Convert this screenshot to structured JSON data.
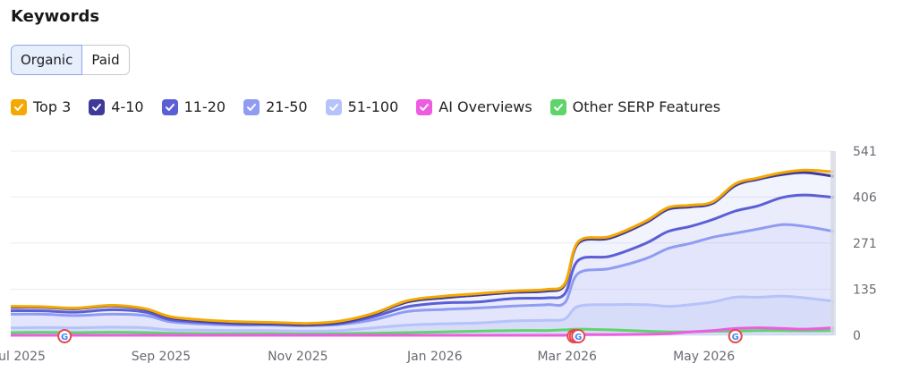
{
  "header": {
    "title": "Keywords"
  },
  "toggle": {
    "options": [
      "Organic",
      "Paid"
    ],
    "selected": "Organic"
  },
  "colors": {
    "top3": "#f5a800",
    "pos4_10": "#3f3a9a",
    "pos11_20": "#5b5fd6",
    "pos21_50": "#8f9cf2",
    "pos51_100": "#b6c3fa",
    "ai": "#ee5ce0",
    "serp": "#5fd46a",
    "grid": "#ececf0",
    "axis_text": "#6a6a73"
  },
  "legend": [
    {
      "label": "Top 3",
      "color": "#f5a800"
    },
    {
      "label": "4-10",
      "color": "#3f3a9a"
    },
    {
      "label": "11-20",
      "color": "#5b5fd6"
    },
    {
      "label": "21-50",
      "color": "#8f9cf2"
    },
    {
      "label": "51-100",
      "color": "#b6c3fa"
    },
    {
      "label": "AI Overviews",
      "color": "#ee5ce0"
    },
    {
      "label": "Other SERP Features",
      "color": "#5fd46a"
    }
  ],
  "chart_data": {
    "type": "area",
    "x_tick_labels": [
      "ul 2025",
      "Sep 2025",
      "Nov 2025",
      "Jan 2026",
      "Mar 2026",
      "May 2026"
    ],
    "x_tick_dates": [
      "2025-07-01",
      "2025-09-01",
      "2025-11-01",
      "2026-01-01",
      "2026-03-01",
      "2026-05-01"
    ],
    "xlim": [
      "2025-06-26",
      "2026-06-28"
    ],
    "y_tick_labels": [
      "541",
      "406",
      "271",
      "135",
      "0"
    ],
    "y_ticks": [
      541,
      406,
      271,
      135,
      0
    ],
    "ylim": [
      0,
      541
    ],
    "grid": true,
    "annotations": {
      "google_update_marker": "G",
      "marker_dates": [
        "2025-07-20",
        "2026-03-04",
        "2026-03-05",
        "2026-03-06",
        "2026-05-15"
      ]
    },
    "x": [
      "2025-06-26",
      "2025-07-10",
      "2025-07-25",
      "2025-08-10",
      "2025-08-25",
      "2025-09-05",
      "2025-09-20",
      "2025-10-05",
      "2025-10-20",
      "2025-11-05",
      "2025-11-20",
      "2025-12-05",
      "2025-12-20",
      "2026-01-05",
      "2026-01-20",
      "2026-02-05",
      "2026-02-20",
      "2026-02-28",
      "2026-03-06",
      "2026-03-20",
      "2026-04-05",
      "2026-04-15",
      "2026-04-25",
      "2026-05-05",
      "2026-05-15",
      "2026-05-25",
      "2026-06-05",
      "2026-06-15",
      "2026-06-28"
    ],
    "series": [
      {
        "name": "Top 3",
        "values": [
          85,
          84,
          80,
          88,
          78,
          55,
          45,
          40,
          38,
          35,
          42,
          65,
          102,
          115,
          122,
          130,
          135,
          152,
          275,
          290,
          335,
          375,
          382,
          392,
          445,
          462,
          478,
          485,
          480
        ]
      },
      {
        "name": "4-10",
        "values": [
          82,
          82,
          78,
          86,
          76,
          52,
          42,
          37,
          35,
          32,
          38,
          62,
          98,
          110,
          118,
          126,
          130,
          148,
          270,
          285,
          330,
          370,
          377,
          388,
          440,
          458,
          472,
          478,
          467
        ]
      },
      {
        "name": "11-20",
        "values": [
          72,
          72,
          68,
          75,
          68,
          46,
          38,
          33,
          32,
          30,
          35,
          55,
          84,
          95,
          98,
          108,
          110,
          122,
          220,
          232,
          270,
          305,
          320,
          340,
          365,
          380,
          405,
          412,
          405
        ]
      },
      {
        "name": "21-50",
        "values": [
          62,
          62,
          58,
          62,
          58,
          40,
          33,
          30,
          30,
          28,
          32,
          46,
          70,
          76,
          80,
          86,
          90,
          96,
          182,
          196,
          225,
          255,
          270,
          288,
          300,
          312,
          325,
          320,
          305
        ]
      },
      {
        "name": "51-100",
        "values": [
          22,
          23,
          22,
          24,
          22,
          16,
          15,
          14,
          14,
          12,
          14,
          22,
          30,
          34,
          36,
          42,
          44,
          48,
          85,
          90,
          90,
          85,
          90,
          98,
          112,
          112,
          115,
          110,
          100
        ]
      },
      {
        "name": "AI Overviews",
        "values": [
          0,
          0,
          0,
          0,
          0,
          0,
          0,
          0,
          0,
          0,
          0,
          0,
          0,
          0,
          0,
          0,
          0,
          0,
          2,
          2,
          3,
          5,
          10,
          14,
          20,
          22,
          20,
          18,
          22
        ]
      },
      {
        "name": "Other SERP Features",
        "values": [
          8,
          9,
          8,
          9,
          8,
          6,
          5,
          5,
          5,
          4,
          5,
          6,
          8,
          10,
          12,
          14,
          14,
          16,
          18,
          16,
          12,
          10,
          10,
          12,
          12,
          14,
          14,
          13,
          14
        ]
      }
    ]
  }
}
